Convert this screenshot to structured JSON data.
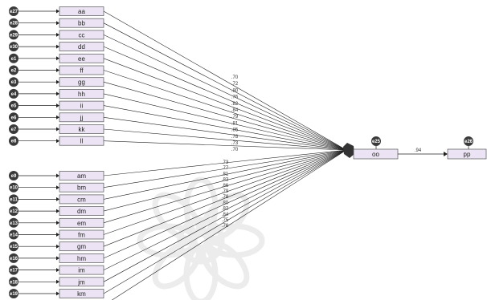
{
  "indicators_top": [
    {
      "label": "aa",
      "error": "e27"
    },
    {
      "label": "bb",
      "error": "e28"
    },
    {
      "label": "cc",
      "error": "e29"
    },
    {
      "label": "dd",
      "error": "e30"
    },
    {
      "label": "ee",
      "error": "e1"
    },
    {
      "label": "ff",
      "error": "e2"
    },
    {
      "label": "gg",
      "error": "e3"
    },
    {
      "label": "hh",
      "error": "e4"
    },
    {
      "label": "ii",
      "error": "e5"
    },
    {
      "label": "jj",
      "error": "e6"
    },
    {
      "label": "kk",
      "error": "e7"
    },
    {
      "label": "ll",
      "error": "e8"
    }
  ],
  "indicators_bottom": [
    {
      "label": "am",
      "error": "e9"
    },
    {
      "label": "bm",
      "error": "e10"
    },
    {
      "label": "cm",
      "error": "e11"
    },
    {
      "label": "dm",
      "error": "e12"
    },
    {
      "label": "em",
      "error": "e13"
    },
    {
      "label": "fm",
      "error": "e14"
    },
    {
      "label": "gm",
      "error": "e15"
    },
    {
      "label": "hm",
      "error": "e16"
    },
    {
      "label": "im",
      "error": "e17"
    },
    {
      "label": "jm",
      "error": "e18"
    },
    {
      "label": "km",
      "error": "e19"
    },
    {
      "label": "lm",
      "error": "e20"
    }
  ],
  "loadings_top": [
    ".70",
    ".72",
    ".80",
    ".76",
    ".82",
    ".84",
    ".79",
    ".81",
    ".85",
    ".78",
    ".73",
    ".70"
  ],
  "loadings_bottom": [
    ".73",
    ".77",
    ".81",
    ".83",
    ".86",
    ".79",
    ".78",
    ".80",
    ".82",
    ".84",
    ".75",
    ".76"
  ],
  "latent": {
    "label": "oo",
    "error": "e25"
  },
  "outcome": {
    "label": "pp",
    "error": "e26"
  },
  "path_coefficient": ".94",
  "colors": {
    "box_fill": "#ece4f4",
    "box_stroke": "#555555",
    "error_fill": "#3a3a3a",
    "line": "#222222",
    "watermark": "#ececec"
  }
}
